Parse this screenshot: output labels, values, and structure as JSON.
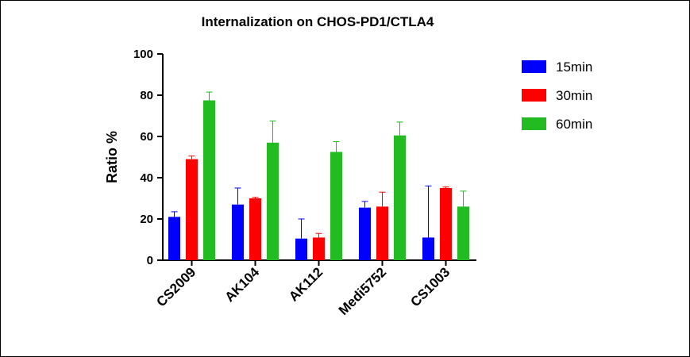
{
  "chart_data": {
    "type": "bar",
    "title": "Internalization on CHOS-PD1/CTLA4",
    "xlabel": "",
    "ylabel": "Ratio %",
    "ylim": [
      0,
      100
    ],
    "yticks": [
      0,
      20,
      40,
      60,
      80,
      100
    ],
    "categories": [
      "CS2009",
      "AK104",
      "AK112",
      "Medi5752",
      "CS1003"
    ],
    "legend_position": "top-right",
    "grid": false,
    "error_bars": true,
    "series": [
      {
        "name": "15min",
        "color": "#0000ff",
        "values": [
          21,
          27,
          10.5,
          25.5,
          11
        ],
        "errors": [
          2.5,
          8,
          9.5,
          3,
          25
        ]
      },
      {
        "name": "30min",
        "color": "#ff0000",
        "values": [
          49,
          30,
          11,
          26,
          35
        ],
        "errors": [
          1.5,
          0.5,
          2,
          7,
          0.5
        ]
      },
      {
        "name": "60min",
        "color": "#22bb22",
        "values": [
          77.5,
          57,
          52.5,
          60.5,
          26
        ],
        "errors": [
          4,
          10.5,
          5,
          6.5,
          7.5
        ]
      }
    ]
  }
}
